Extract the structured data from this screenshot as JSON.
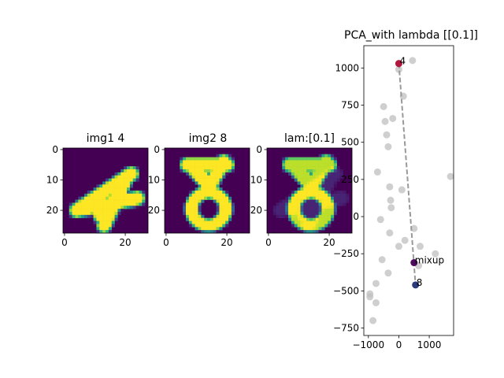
{
  "chart_data": [
    {
      "type": "heatmap",
      "title": "img1 4",
      "colormap": "viridis",
      "xlim": [
        0,
        27
      ],
      "ylim": [
        27,
        0
      ],
      "xticks": [
        0,
        20
      ],
      "yticks": [
        0,
        10,
        20
      ],
      "digit": "4",
      "mix": 0
    },
    {
      "type": "heatmap",
      "title": "img2 8",
      "colormap": "viridis",
      "xlim": [
        0,
        27
      ],
      "ylim": [
        27,
        0
      ],
      "xticks": [
        0,
        20
      ],
      "yticks": [
        0,
        10,
        20
      ],
      "digit": "8",
      "mix": 1
    },
    {
      "type": "heatmap",
      "title": "lam:[0.1]",
      "colormap": "viridis",
      "xlim": [
        0,
        27
      ],
      "ylim": [
        27,
        0
      ],
      "xticks": [
        0,
        20
      ],
      "yticks": [
        0,
        10,
        20
      ],
      "digit": "mixup",
      "mix": 0.9
    },
    {
      "type": "scatter",
      "title": "PCA_with lambda [[0.1]]",
      "xlim": [
        -1150,
        1800
      ],
      "ylim": [
        -800,
        1150
      ],
      "xticks": [
        -1000,
        0,
        1000
      ],
      "xtick_labels": [
        "−1000",
        "0",
        "1000"
      ],
      "yticks": [
        -750,
        -500,
        -250,
        0,
        250,
        500,
        750,
        1000
      ],
      "ytick_labels": [
        "−750",
        "−500",
        "−250",
        "0",
        "250",
        "500",
        "750",
        "1000"
      ],
      "background_points": [
        [
          450,
          1050
        ],
        [
          0,
          990
        ],
        [
          150,
          810
        ],
        [
          -500,
          740
        ],
        [
          -200,
          660
        ],
        [
          -450,
          640
        ],
        [
          -400,
          550
        ],
        [
          -350,
          470
        ],
        [
          -700,
          300
        ],
        [
          1700,
          270
        ],
        [
          -300,
          200
        ],
        [
          100,
          180
        ],
        [
          -270,
          110
        ],
        [
          -250,
          60
        ],
        [
          -600,
          -20
        ],
        [
          500,
          -80
        ],
        [
          -300,
          -110
        ],
        [
          200,
          -160
        ],
        [
          0,
          -200
        ],
        [
          700,
          -200
        ],
        [
          1200,
          -250
        ],
        [
          -550,
          -290
        ],
        [
          650,
          -330
        ],
        [
          -350,
          -380
        ],
        [
          -750,
          -450
        ],
        [
          -950,
          -520
        ],
        [
          -950,
          -540
        ],
        [
          -750,
          -580
        ],
        [
          -850,
          -700
        ]
      ],
      "background_color": "#bfbfbf",
      "highlight_points": [
        {
          "label": "4",
          "x": 0,
          "y": 1030,
          "color": "#b0163e"
        },
        {
          "label": "mixup",
          "x": 500,
          "y": -310,
          "color": "#4b0a5a"
        },
        {
          "label": "8",
          "x": 550,
          "y": -460,
          "color": "#2b3a7a"
        }
      ],
      "line": {
        "x": [
          0,
          550
        ],
        "y": [
          1030,
          -460
        ],
        "style": "dashed",
        "color": "#999999"
      }
    }
  ]
}
